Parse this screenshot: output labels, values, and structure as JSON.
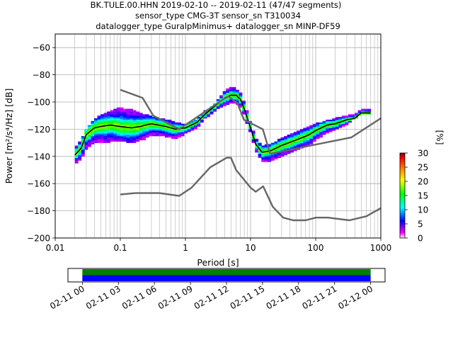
{
  "title": {
    "line1": "BK.TULE.00.HHN   2019-02-10 -- 2019-02-11  (47/47 segments)",
    "line2": "sensor_type CMG-3T sensor_sn T310034",
    "line3": "datalogger_type GuralpMinimus+ datalogger_sn MINP-DF59"
  },
  "chart_data": {
    "type": "heatmap",
    "xlabel": "Period [s]",
    "ylabel": "Power [m²/s⁴/Hz] [dB]",
    "xscale": "log",
    "xlim": [
      0.01,
      1000
    ],
    "ylim": [
      -200,
      -50
    ],
    "grid": true,
    "x_ticks": [
      {
        "value": 0.01,
        "label": "0.01"
      },
      {
        "value": 0.1,
        "label": "0.1"
      },
      {
        "value": 1,
        "label": "1"
      },
      {
        "value": 10,
        "label": "10"
      },
      {
        "value": 100,
        "label": "100"
      },
      {
        "value": 1000,
        "label": "1000"
      }
    ],
    "y_ticks": [
      {
        "value": -60,
        "label": "−60"
      },
      {
        "value": -80,
        "label": "−80"
      },
      {
        "value": -100,
        "label": "−100"
      },
      {
        "value": -120,
        "label": "−120"
      },
      {
        "value": -140,
        "label": "−140"
      },
      {
        "value": -160,
        "label": "−160"
      },
      {
        "value": -180,
        "label": "−180"
      },
      {
        "value": -200,
        "label": "−200"
      }
    ],
    "colorbar": {
      "label": "[%]",
      "range": [
        0,
        30
      ],
      "ticks": [
        {
          "value": 0,
          "label": "0"
        },
        {
          "value": 5,
          "label": "5"
        },
        {
          "value": 10,
          "label": "10"
        },
        {
          "value": 15,
          "label": "15"
        },
        {
          "value": 20,
          "label": "20"
        },
        {
          "value": 25,
          "label": "25"
        },
        {
          "value": 30,
          "label": "30"
        }
      ],
      "colors": [
        "#ffffff",
        "#ff00ff",
        "#0000ff",
        "#00ffff",
        "#00ff00",
        "#ffff00",
        "#ff7f00",
        "#ff0000",
        "#7f0000"
      ]
    },
    "ppsd_band": {
      "period": [
        0.02,
        0.025,
        0.03,
        0.04,
        0.05,
        0.07,
        0.1,
        0.15,
        0.2,
        0.3,
        0.5,
        0.7,
        1,
        1.5,
        2,
        3,
        4,
        5,
        6,
        7,
        8,
        10,
        12,
        15,
        20,
        30,
        50,
        80,
        100,
        150,
        200,
        300,
        500,
        700
      ],
      "upper": [
        -134,
        -128,
        -120,
        -113,
        -110,
        -107,
        -104,
        -106,
        -108,
        -111,
        -113,
        -115,
        -117,
        -113,
        -107,
        -100,
        -92,
        -89,
        -90,
        -94,
        -101,
        -115,
        -127,
        -133,
        -131,
        -127,
        -122,
        -118,
        -116,
        -114,
        -112,
        -110,
        -104,
        -104
      ],
      "lower": [
        -146,
        -143,
        -138,
        -133,
        -131,
        -129,
        -128,
        -130,
        -128,
        -126,
        -126,
        -127,
        -125,
        -120,
        -113,
        -107,
        -102,
        -100,
        -101,
        -104,
        -110,
        -122,
        -136,
        -145,
        -144,
        -141,
        -136,
        -132,
        -128,
        -124,
        -121,
        -116,
        -109,
        -109
      ]
    },
    "series": [
      {
        "name": "mean",
        "color": "#000000",
        "x": [
          0.02,
          0.025,
          0.03,
          0.04,
          0.05,
          0.07,
          0.1,
          0.15,
          0.2,
          0.3,
          0.5,
          0.7,
          1,
          1.5,
          2,
          3,
          4,
          5,
          6,
          7,
          8,
          10,
          12,
          15,
          20,
          30,
          50,
          80,
          100,
          150,
          200,
          300,
          400,
          500,
          700
        ],
        "y": [
          -139,
          -134,
          -124,
          -119,
          -118,
          -117,
          -118,
          -119,
          -118,
          -116,
          -118,
          -120,
          -119,
          -115,
          -109,
          -102,
          -97,
          -95,
          -95,
          -98,
          -105,
          -119,
          -131,
          -137,
          -136,
          -132,
          -128,
          -124,
          -121,
          -117,
          -116,
          -113,
          -112,
          -108,
          -108
        ]
      },
      {
        "name": "low noise model",
        "color": "#666666",
        "x": [
          0.1,
          0.17,
          0.4,
          0.8,
          1.24,
          2.4,
          4.3,
          5.0,
          6.0,
          10.0,
          12.0,
          15.6,
          21.9,
          31.6,
          45.0,
          70.0,
          101.0,
          154.0,
          328.0,
          600.0,
          1000.0
        ],
        "y": [
          -168,
          -167,
          -167,
          -169,
          -163,
          -148,
          -141,
          -141,
          -150,
          -163,
          -166,
          -162,
          -177,
          -185,
          -187,
          -187,
          -185,
          -185,
          -187,
          -184,
          -178
        ]
      },
      {
        "name": "high noise model",
        "color": "#666666",
        "x": [
          0.1,
          0.22,
          0.32,
          0.8,
          3.8,
          4.6,
          6.3,
          7.9,
          15.4,
          20.0,
          354.8,
          1000.0
        ],
        "y": [
          -91,
          -97,
          -110,
          -120,
          -98,
          -96,
          -101,
          -113,
          -120,
          -138,
          -126,
          -112
        ]
      }
    ]
  },
  "timeline": {
    "tick_labels": [
      "02-11 00",
      "02-11 03",
      "02-11 06",
      "02-11 09",
      "02-11 12",
      "02-11 15",
      "02-11 18",
      "02-11 21",
      "02-12 00"
    ],
    "bars": [
      {
        "name": "data coverage",
        "color": "#008000",
        "start_hour": 0,
        "end_hour": 24
      },
      {
        "name": "used segments",
        "color": "#0000ff",
        "start_hour": 0,
        "end_hour": 24
      }
    ],
    "range_hours": [
      -1.2,
      25.2
    ]
  }
}
